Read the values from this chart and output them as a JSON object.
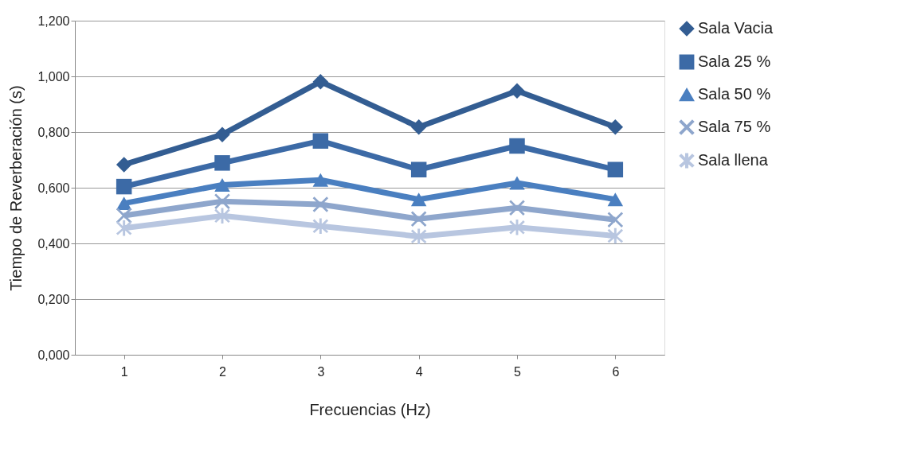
{
  "chart_data": {
    "type": "line",
    "xlabel": "Frecuencias (Hz)",
    "ylabel": "Tiempo de Reverberación (s)",
    "categories": [
      "1",
      "2",
      "3",
      "4",
      "5",
      "6"
    ],
    "series": [
      {
        "name": "Sala Vacia",
        "color": "#335d92",
        "marker": "diamond",
        "values": [
          0.683,
          0.791,
          0.981,
          0.818,
          0.948,
          0.818
        ]
      },
      {
        "name": "Sala 25 %",
        "color": "#3c6aa6",
        "marker": "square",
        "values": [
          0.604,
          0.689,
          0.768,
          0.665,
          0.75,
          0.665
        ]
      },
      {
        "name": "Sala 50 %",
        "color": "#4a7fc0",
        "marker": "triangle",
        "values": [
          0.544,
          0.61,
          0.628,
          0.558,
          0.617,
          0.558
        ]
      },
      {
        "name": "Sala 75 %",
        "color": "#8ea6cc",
        "marker": "cross",
        "values": [
          0.5,
          0.551,
          0.54,
          0.488,
          0.528,
          0.485
        ]
      },
      {
        "name": "Sala llena",
        "color": "#b8c6e0",
        "marker": "star",
        "values": [
          0.455,
          0.499,
          0.462,
          0.425,
          0.458,
          0.427
        ]
      }
    ],
    "ylim": [
      0,
      1.2
    ],
    "yticks": [
      {
        "value": 0,
        "label": "0,000"
      },
      {
        "value": 0.2,
        "label": "0,200"
      },
      {
        "value": 0.4,
        "label": "0,400"
      },
      {
        "value": 0.6,
        "label": "0,600"
      },
      {
        "value": 0.8,
        "label": "0,800"
      },
      {
        "value": 1.0,
        "label": "1,000"
      },
      {
        "value": 1.2,
        "label": "1,200"
      }
    ],
    "grid": "y",
    "legend": "right",
    "line_style": "solid"
  }
}
